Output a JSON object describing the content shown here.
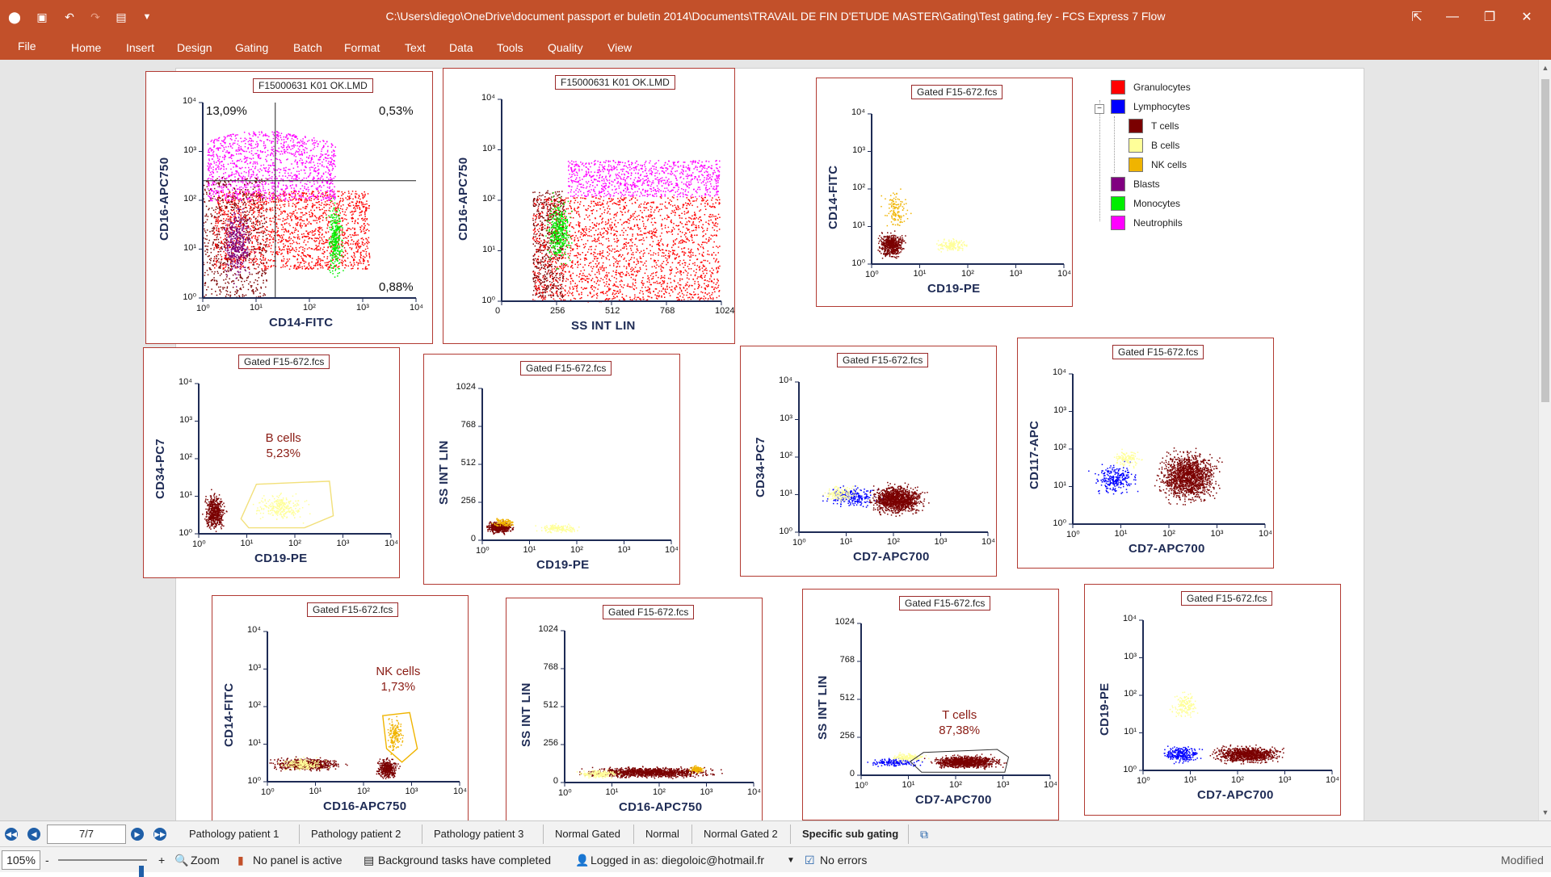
{
  "window": {
    "title": "C:\\Users\\diego\\OneDrive\\document passport er buletin 2014\\Documents\\TRAVAIL DE FIN D'ETUDE MASTER\\Gating\\Test gating.fey - FCS Express 7 Flow",
    "minimize": "—",
    "restore": "❐",
    "close": "✕"
  },
  "quick_access": [
    "app-icon",
    "save-icon",
    "undo-icon",
    "redo-icon",
    "print-icon",
    "customize-icon"
  ],
  "menu": {
    "file": "File",
    "items": [
      "Home",
      "Insert",
      "Design",
      "Gating",
      "Batch",
      "Format",
      "Text",
      "Data",
      "Tools",
      "Quality",
      "View"
    ]
  },
  "plots": [
    {
      "id": "p1",
      "title": "F15000631 K01 OK.LMD",
      "x_label": "CD14-FITC",
      "y_label": "CD16-APC750",
      "x_ticks": [
        "10⁰",
        "10¹",
        "10²",
        "10³",
        "10⁴"
      ],
      "y_ticks": [
        "10⁴",
        "10³",
        "10²",
        "10¹",
        "10⁰"
      ],
      "quadrants": {
        "ul": "13,09%",
        "ur": "0,53%",
        "ll": "",
        "lr": "0,88%"
      },
      "populations": [
        "Neutrophils",
        "Granulocytes",
        "Blasts",
        "Monocytes",
        "T cells"
      ]
    },
    {
      "id": "p2",
      "title": "F15000631 K01 OK.LMD",
      "x_label": "SS INT LIN",
      "y_label": "CD16-APC750",
      "x_ticks": [
        "0",
        "256",
        "512",
        "768",
        "1024"
      ],
      "y_ticks": [
        "10⁴",
        "10³",
        "10²",
        "10¹",
        "10⁰"
      ],
      "populations": [
        "Granulocytes",
        "Neutrophils",
        "Monocytes",
        "T cells"
      ]
    },
    {
      "id": "p3",
      "title": "Gated F15-672.fcs",
      "x_label": "CD19-PE",
      "y_label": "CD14-FITC",
      "x_ticks": [
        "10⁰",
        "10¹",
        "10²",
        "10³",
        "10⁴"
      ],
      "y_ticks": [
        "10⁴",
        "10³",
        "10²",
        "10¹",
        "10⁰"
      ],
      "populations": [
        "T cells",
        "B cells",
        "NK cells"
      ]
    },
    {
      "id": "p4",
      "title": "Gated F15-672.fcs",
      "x_label": "CD19-PE",
      "y_label": "CD34-PC7",
      "x_ticks": [
        "10⁰",
        "10¹",
        "10²",
        "10³",
        "10⁴"
      ],
      "y_ticks": [
        "10⁴",
        "10³",
        "10²",
        "10¹",
        "10⁰"
      ],
      "gate_label": {
        "name": "B cells",
        "value": "5,23%"
      },
      "populations": [
        "T cells",
        "B cells"
      ]
    },
    {
      "id": "p5",
      "title": "Gated F15-672.fcs",
      "x_label": "CD19-PE",
      "y_label": "SS INT LIN",
      "x_ticks": [
        "10⁰",
        "10¹",
        "10²",
        "10³",
        "10⁴"
      ],
      "y_ticks": [
        "1024",
        "768",
        "512",
        "256",
        "0"
      ],
      "populations": [
        "T cells",
        "B cells",
        "NK cells"
      ]
    },
    {
      "id": "p6",
      "title": "Gated F15-672.fcs",
      "x_label": "CD7-APC700",
      "y_label": "CD34-PC7",
      "x_ticks": [
        "10⁰",
        "10¹",
        "10²",
        "10³",
        "10⁴"
      ],
      "y_ticks": [
        "10⁴",
        "10³",
        "10²",
        "10¹",
        "10⁰"
      ],
      "populations": [
        "Lymphocytes",
        "B cells",
        "T cells"
      ]
    },
    {
      "id": "p7",
      "title": "Gated F15-672.fcs",
      "x_label": "CD7-APC700",
      "y_label": "CD117-APC",
      "x_ticks": [
        "10⁰",
        "10¹",
        "10²",
        "10³",
        "10⁴"
      ],
      "y_ticks": [
        "10⁴",
        "10³",
        "10²",
        "10¹",
        "10⁰"
      ],
      "populations": [
        "Lymphocytes",
        "B cells",
        "T cells"
      ]
    },
    {
      "id": "p8",
      "title": "Gated F15-672.fcs",
      "x_label": "CD16-APC750",
      "y_label": "CD14-FITC",
      "x_ticks": [
        "10⁰",
        "10¹",
        "10²",
        "10³",
        "10⁴"
      ],
      "y_ticks": [
        "10⁴",
        "10³",
        "10²",
        "10¹",
        "10⁰"
      ],
      "gate_label": {
        "name": "NK cells",
        "value": "1,73%"
      },
      "populations": [
        "T cells",
        "B cells",
        "NK cells"
      ]
    },
    {
      "id": "p9",
      "title": "Gated F15-672.fcs",
      "x_label": "CD16-APC750",
      "y_label": "SS INT LIN",
      "x_ticks": [
        "10⁰",
        "10¹",
        "10²",
        "10³",
        "10⁴"
      ],
      "y_ticks": [
        "1024",
        "768",
        "512",
        "256",
        "0"
      ],
      "populations": [
        "T cells",
        "B cells",
        "NK cells"
      ]
    },
    {
      "id": "p10",
      "title": "Gated F15-672.fcs",
      "x_label": "CD7-APC700",
      "y_label": "SS INT LIN",
      "x_ticks": [
        "10⁰",
        "10¹",
        "10²",
        "10³",
        "10⁴"
      ],
      "y_ticks": [
        "1024",
        "768",
        "512",
        "256",
        "0"
      ],
      "gate_label": {
        "name": "T cells",
        "value": "87,38%"
      },
      "populations": [
        "Lymphocytes",
        "B cells",
        "T cells"
      ]
    },
    {
      "id": "p11",
      "title": "Gated F15-672.fcs",
      "x_label": "CD7-APC700",
      "y_label": "CD19-PE",
      "x_ticks": [
        "10⁰",
        "10¹",
        "10²",
        "10³",
        "10⁴"
      ],
      "y_ticks": [
        "10⁴",
        "10³",
        "10²",
        "10¹",
        "10⁰"
      ],
      "populations": [
        "B cells",
        "Lymphocytes",
        "T cells"
      ]
    }
  ],
  "legend": [
    {
      "label": "Granulocytes",
      "color": "#ff0000"
    },
    {
      "label": "Lymphocytes",
      "color": "#0000ff"
    },
    {
      "label": "T cells",
      "color": "#7a0000"
    },
    {
      "label": "B cells",
      "color": "#ffff99"
    },
    {
      "label": "NK cells",
      "color": "#f0b400"
    },
    {
      "label": "Blasts",
      "color": "#800080"
    },
    {
      "label": "Monocytes",
      "color": "#00ee00"
    },
    {
      "label": "Neutrophils",
      "color": "#ff00ff"
    }
  ],
  "tabs": {
    "page_indicator": "7/7",
    "items": [
      "Pathology patient 1",
      "Pathology patient 2",
      "Pathology patient 3",
      "Normal Gated",
      "Normal",
      "Normal Gated 2",
      "Specific sub gating"
    ],
    "active": "Specific sub gating"
  },
  "status": {
    "zoom_value": "105%",
    "zoom_minus": "-",
    "zoom_plus": "+",
    "zoom_label": "Zoom",
    "panel": "No panel is active",
    "tasks": "Background tasks have completed",
    "login": "Logged in as: diegoloic@hotmail.fr",
    "errors": "No errors",
    "modified": "Modified"
  }
}
